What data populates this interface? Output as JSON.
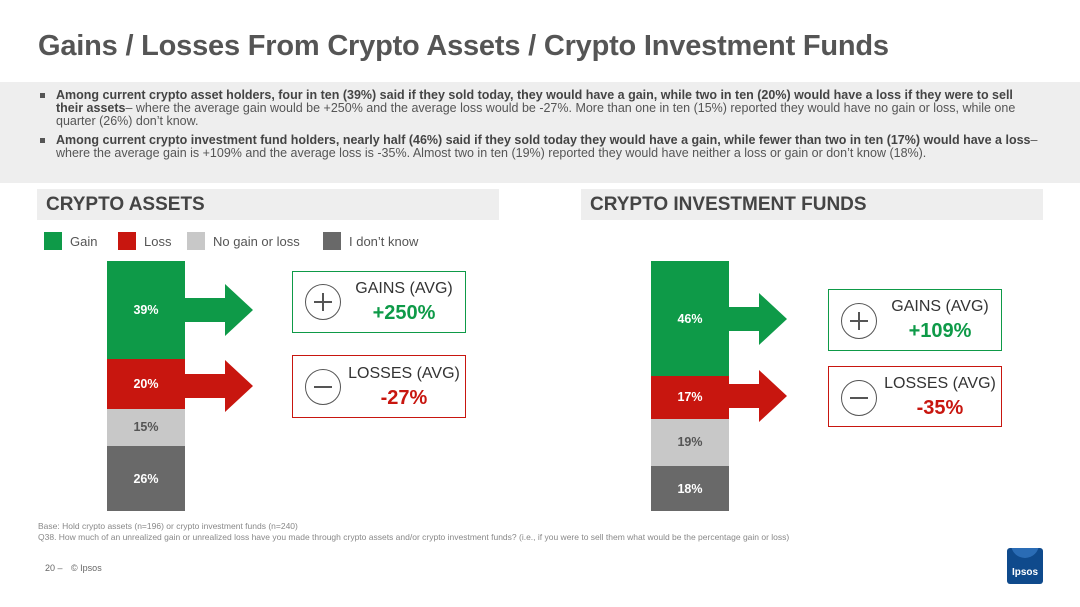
{
  "title": "Gains / Losses From Crypto Assets / Crypto Investment Funds",
  "summary": {
    "bullet1_bold": "Among current crypto asset holders, four in ten (39%) said if they sold today, they would have a gain, while two in ten (20%) would have a loss if they were to sell their assets",
    "bullet1_rest": "– where the average gain would be +250% and the average loss would be -27%.  More than one in ten (15%) reported they would have no gain or loss, while one quarter (26%) don’t know.",
    "bullet2_bold": "Among current crypto investment fund holders, nearly half (46%) said  if they sold today they would have a gain, while fewer than two in ten (17%) would have a loss",
    "bullet2_rest": "– where the average gain is +109% and the average loss is -35%. Almost two in ten (19%) reported they would have neither a loss or gain or don’t know (18%)."
  },
  "colors": {
    "gain": "#0e9a48",
    "loss": "#c8160f",
    "no_gain_or_loss": "#c8c8c8",
    "dont_know": "#696969"
  },
  "legend": [
    {
      "label": "Gain",
      "color": "#0e9a48"
    },
    {
      "label": "Loss",
      "color": "#c8160f"
    },
    {
      "label": "No gain or loss",
      "color": "#c8c8c8"
    },
    {
      "label": "I don’t know",
      "color": "#696969"
    }
  ],
  "chart_data": [
    {
      "type": "bar",
      "title": "CRYPTO ASSETS",
      "stacked": true,
      "unit": "%",
      "series": [
        {
          "name": "Gain",
          "value": 39,
          "label": "39%"
        },
        {
          "name": "Loss",
          "value": 20,
          "label": "20%"
        },
        {
          "name": "No gain or loss",
          "value": 15,
          "label": "15%"
        },
        {
          "name": "I don’t know",
          "value": 26,
          "label": "26%"
        }
      ],
      "gains_avg": {
        "label": "GAINS (AVG)",
        "value": "+250%"
      },
      "losses_avg": {
        "label": "LOSSES (AVG)",
        "value": "-27%"
      }
    },
    {
      "type": "bar",
      "title": "CRYPTO INVESTMENT FUNDS",
      "stacked": true,
      "unit": "%",
      "series": [
        {
          "name": "Gain",
          "value": 46,
          "label": "46%"
        },
        {
          "name": "Loss",
          "value": 17,
          "label": "17%"
        },
        {
          "name": "No gain or loss",
          "value": 19,
          "label": "19%"
        },
        {
          "name": "I don’t know",
          "value": 18,
          "label": "18%"
        }
      ],
      "gains_avg": {
        "label": "GAINS (AVG)",
        "value": "+109%"
      },
      "losses_avg": {
        "label": "LOSSES (AVG)",
        "value": "-35%"
      }
    }
  ],
  "footnotes": {
    "base": "Base: Hold crypto assets (n=196) or crypto investment funds (n=240)",
    "question": "Q38. How much of an unrealized gain or unrealized loss have you made through crypto assets and/or crypto investment funds? (i.e., if you were to sell them what would be the percentage gain or loss)"
  },
  "page_number": "20 –",
  "copyright": "© Ipsos",
  "logo_text": "Ipsos"
}
